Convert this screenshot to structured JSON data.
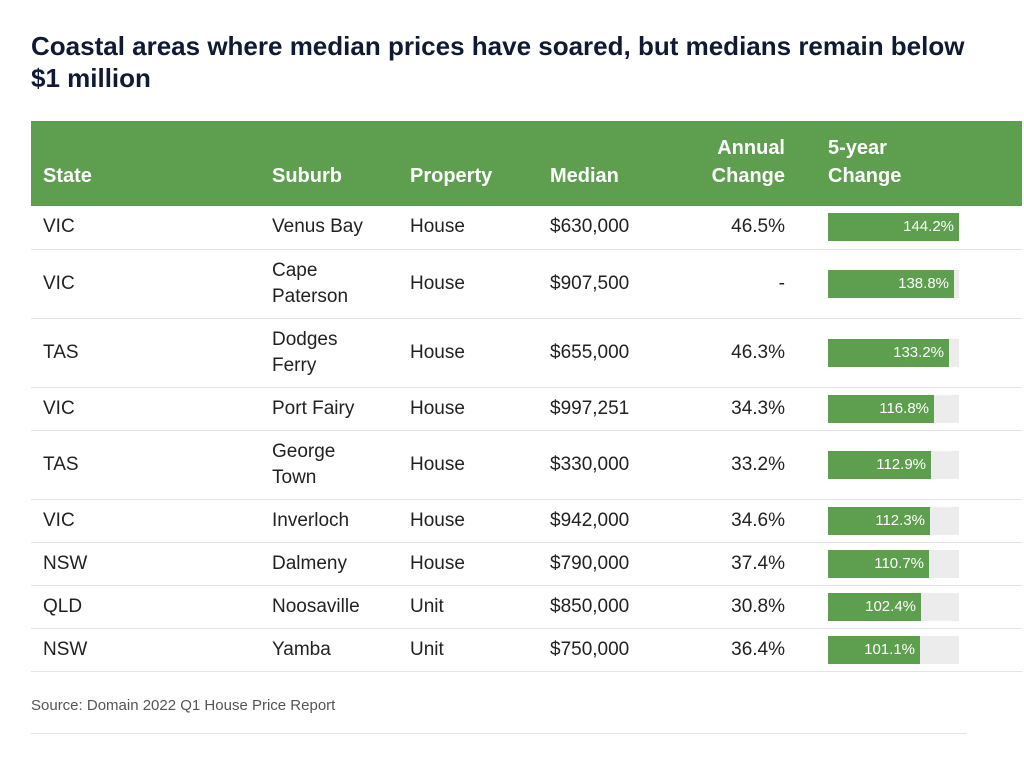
{
  "chart_data": {
    "type": "table",
    "title": "Coastal areas where median prices have soared, but medians remain below $1 million",
    "columns": [
      "State",
      "Suburb",
      "Property",
      "Median",
      "Annual Change",
      "5-year Change"
    ],
    "rows": [
      {
        "state": "VIC",
        "suburb": "Venus Bay",
        "property": "House",
        "median": "$630,000",
        "annual": "46.5%",
        "five_year": "144.2%",
        "five_year_value": 144.2
      },
      {
        "state": "VIC",
        "suburb": "Cape Paterson",
        "property": "House",
        "median": "$907,500",
        "annual": "-",
        "five_year": "138.8%",
        "five_year_value": 138.8
      },
      {
        "state": "TAS",
        "suburb": "Dodges Ferry",
        "property": "House",
        "median": "$655,000",
        "annual": "46.3%",
        "five_year": "133.2%",
        "five_year_value": 133.2
      },
      {
        "state": "VIC",
        "suburb": "Port Fairy",
        "property": "House",
        "median": "$997,251",
        "annual": "34.3%",
        "five_year": "116.8%",
        "five_year_value": 116.8
      },
      {
        "state": "TAS",
        "suburb": "George Town",
        "property": "House",
        "median": "$330,000",
        "annual": "33.2%",
        "five_year": "112.9%",
        "five_year_value": 112.9
      },
      {
        "state": "VIC",
        "suburb": "Inverloch",
        "property": "House",
        "median": "$942,000",
        "annual": "34.6%",
        "five_year": "112.3%",
        "five_year_value": 112.3
      },
      {
        "state": "NSW",
        "suburb": "Dalmeny",
        "property": "House",
        "median": "$790,000",
        "annual": "37.4%",
        "five_year": "110.7%",
        "five_year_value": 110.7
      },
      {
        "state": "QLD",
        "suburb": "Noosaville",
        "property": "Unit",
        "median": "$850,000",
        "annual": "30.8%",
        "five_year": "102.4%",
        "five_year_value": 102.4
      },
      {
        "state": "NSW",
        "suburb": "Yamba",
        "property": "Unit",
        "median": "$750,000",
        "annual": "36.4%",
        "five_year": "101.1%",
        "five_year_value": 101.1
      }
    ],
    "bar_max": 144.2,
    "colors": {
      "header": "#5e9f4f",
      "bar": "#5e9f4f",
      "track": "#ececec"
    }
  },
  "source": "Source: Domain 2022 Q1 House Price Report"
}
